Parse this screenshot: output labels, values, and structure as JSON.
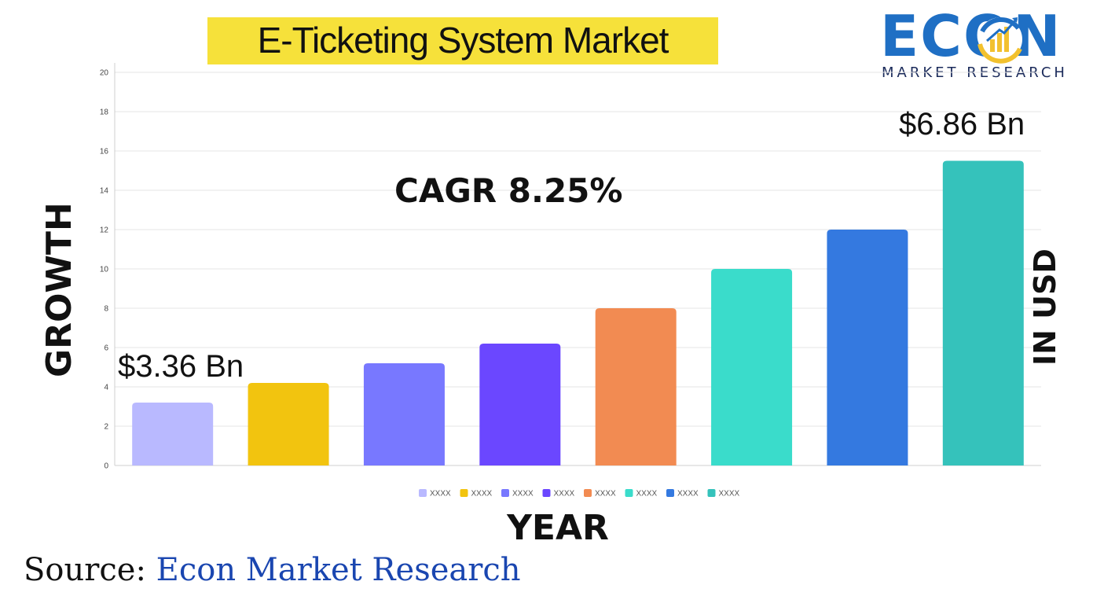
{
  "title": "E-Ticketing System Market",
  "logo": {
    "word": "ECON",
    "sub": "MARKET RESEARCH",
    "colors": {
      "primary": "#1f6fc4",
      "accent": "#f2c12e"
    }
  },
  "annotations": {
    "cagr": "CAGR 8.25%",
    "start_value": "$3.36 Bn",
    "end_value": "$6.86 Bn"
  },
  "axis_titles": {
    "y_left": "GROWTH",
    "y_right": "IN USD",
    "x": "YEAR"
  },
  "source": {
    "label": "Source:",
    "name": "Econ Market Research"
  },
  "chart_data": {
    "type": "bar",
    "categories": [
      "XXXX",
      "XXXX",
      "XXXX",
      "XXXX",
      "XXXX",
      "XXXX",
      "XXXX",
      "XXXX"
    ],
    "values": [
      3.2,
      4.2,
      5.2,
      6.2,
      8.0,
      10.0,
      12.0,
      15.5
    ],
    "colors": [
      "#b9b9ff",
      "#f2c40f",
      "#7878ff",
      "#6b47ff",
      "#f28b52",
      "#3adccb",
      "#3479e0",
      "#35c2bb"
    ],
    "ylim": [
      0,
      20
    ],
    "yticks": [
      0,
      2,
      4,
      6,
      8,
      10,
      12,
      14,
      16,
      18,
      20
    ],
    "grid": true,
    "legend": "bottom",
    "xlabel": "YEAR",
    "ylabel": "GROWTH"
  }
}
